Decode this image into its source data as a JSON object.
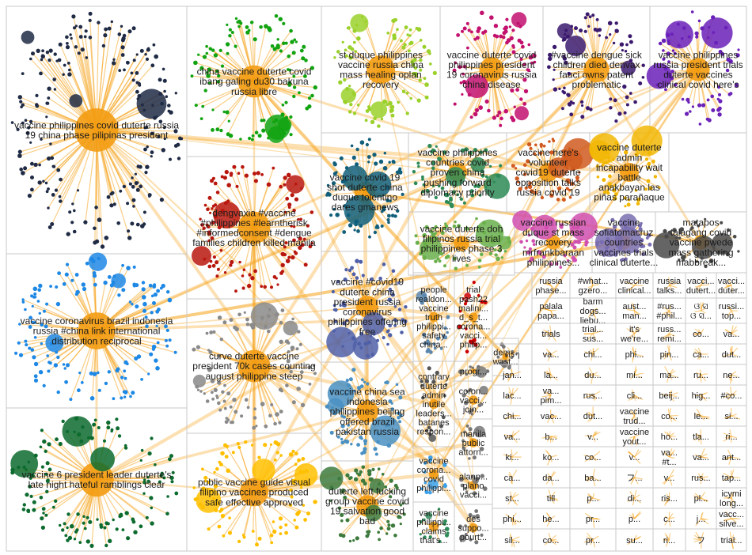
{
  "colors": {
    "edge": "#f5a623",
    "hub": "#f39c12",
    "cell_border": "#c8c8c8",
    "label": "#1a1a1a"
  },
  "groups": [
    {
      "id": "g1",
      "lines": [
        "vaccine philippines covid duterte russia",
        "19 china phase pilipinas president"
      ],
      "color": "#1f2a44",
      "nodes": 220
    },
    {
      "id": "g2",
      "lines": [
        "china vaccine duterte covid",
        "ibang galing du30 bakuna",
        "russia libre"
      ],
      "color": "#11a311",
      "nodes": 110
    },
    {
      "id": "g3",
      "lines": [
        "st duque philippines",
        "vaccine russia china",
        "mass healing oplan",
        "recovery"
      ],
      "color": "#9ad12b",
      "nodes": 90
    },
    {
      "id": "g4",
      "lines": [
        "vaccine duterte covid",
        "philippines president",
        "19 coronavirus russia",
        "china disease"
      ],
      "color": "#c2116e",
      "nodes": 80
    },
    {
      "id": "g5",
      "lines": [
        "#vaccine dengue sick",
        "children died denvax",
        "fauci owns patent",
        "problematic"
      ],
      "color": "#3b1a6e",
      "nodes": 75
    },
    {
      "id": "g6",
      "lines": [
        "vaccine philippines",
        "russia president trials",
        "duterte vaccines",
        "clinical covid here's"
      ],
      "color": "#6a21b8",
      "nodes": 70
    },
    {
      "id": "g7",
      "lines": [
        "dengvaxia #vaccine",
        "#philippines #learntherisk",
        "#informedconsent #dengue",
        "families children killed manila"
      ],
      "color": "#b8170f",
      "nodes": 110
    },
    {
      "id": "g8",
      "lines": [
        "vaccine covid 19",
        "shot duterte china",
        "duque tolentino",
        "dares gmanews"
      ],
      "color": "#115f7a",
      "nodes": 70
    },
    {
      "id": "g9",
      "lines": [
        "vaccine philippines",
        "countries covid",
        "proven china",
        "pushing forward",
        "diplomacy priority"
      ],
      "color": "#2e8b57",
      "nodes": 60
    },
    {
      "id": "g10",
      "lines": [
        "vaccine here's",
        "volunteer",
        "covid19 duterte",
        "opposition talks",
        "russia covid 19"
      ],
      "color": "#d05a1f",
      "nodes": 50
    },
    {
      "id": "g11",
      "lines": [
        "vaccine duterte",
        "admin",
        "incapability wait",
        "battle",
        "anakbayan las",
        "piñas parañaque"
      ],
      "color": "#f2b705",
      "nodes": 45
    },
    {
      "id": "g12",
      "lines": [
        "vaccine coronavirus brazil indonesia",
        "russia #china link international",
        "distribution reciprocal"
      ],
      "color": "#1e88e5",
      "nodes": 150
    },
    {
      "id": "g13",
      "lines": [
        "curve duterte vaccine",
        "president 70k cases counting",
        "august philippine steep"
      ],
      "color": "#8a8a8a",
      "nodes": 100
    },
    {
      "id": "g14",
      "lines": [
        "vaccine #covid19",
        "duterte china",
        "president russia",
        "coronavirus",
        "philippines offering",
        "free"
      ],
      "color": "#5060a8",
      "nodes": 60
    },
    {
      "id": "g15",
      "lines": [
        "vaccine duterte doh",
        "filipinos russia trial",
        "philippines phase 3",
        "lives"
      ],
      "color": "#6ab04c",
      "nodes": 60
    },
    {
      "id": "g16",
      "lines": [
        "vaccine russian",
        "duque st mass",
        "recovery",
        "mrfrankbaraan",
        "philippines..."
      ],
      "color": "#d04fb0",
      "nodes": 45
    },
    {
      "id": "g17",
      "lines": [
        "vaccine",
        "sofiatomacruz",
        "countries",
        "vaccines trials",
        "clinical duterte..."
      ],
      "color": "#7a6fb0",
      "nodes": 35
    },
    {
      "id": "g18",
      "lines": [
        "matapos",
        "talagang covid",
        "vaccine pwede",
        "mass gathering",
        "mabbreak..."
      ],
      "color": "#4a4a4a",
      "nodes": 30
    },
    {
      "id": "g19",
      "lines": [
        "vaccine 6 president leader duterte's",
        "late night hateful ramblings clear"
      ],
      "color": "#0d6b2f",
      "nodes": 130
    },
    {
      "id": "g20",
      "lines": [
        "public vaccine guide visual",
        "filipino vaccines produced",
        "safe effective approved"
      ],
      "color": "#ffbf00",
      "nodes": 90
    },
    {
      "id": "g21",
      "lines": [
        "vaccine china sea",
        "indonesia",
        "philippines beijing",
        "offered brazil",
        "pakistan russia"
      ],
      "color": "#4a90c2",
      "nodes": 60
    },
    {
      "id": "g22",
      "lines": [
        "duterte left fucking",
        "group vaccine covid",
        "19 salvation good",
        "bad"
      ],
      "color": "#3d7a3d",
      "nodes": 60
    },
    {
      "id": "g23",
      "lines": [
        "people",
        "realdon...",
        "vaccine",
        "truth",
        "philippi...",
        "safety",
        "china..."
      ],
      "color": "#5c88b0",
      "nodes": 20
    },
    {
      "id": "g24",
      "lines": [
        "trial",
        "pash22",
        "malini...",
        "d_s_t...",
        "corona...",
        "vacci...",
        "philip..."
      ],
      "color": "#c00",
      "nodes": 15
    },
    {
      "id": "g25",
      "lines": [
        "contrary",
        "duterte",
        "admin",
        "inutile",
        "leaders...",
        "batanes",
        "respon..."
      ],
      "color": "#555",
      "nodes": 15
    },
    {
      "id": "g26",
      "lines": [
        "dem...",
        "wast..."
      ],
      "color": "#777",
      "nodes": 10
    },
    {
      "id": "g27",
      "lines": [
        "progr..."
      ],
      "color": "#777",
      "nodes": 8
    },
    {
      "id": "g28",
      "lines": [
        "coron...",
        "vacci...",
        "join..."
      ],
      "color": "#777",
      "nodes": 10
    },
    {
      "id": "g29",
      "lines": [
        "manila",
        "public",
        "attorn..."
      ],
      "color": "#777",
      "nodes": 10
    },
    {
      "id": "g30",
      "lines": [
        "vaccine",
        "corona...",
        "covid",
        "philippi..."
      ],
      "color": "#3aa0e8",
      "nodes": 12
    },
    {
      "id": "g31",
      "lines": [
        "alanp...",
        "plano",
        "vacci..."
      ],
      "color": "#777",
      "nodes": 10
    },
    {
      "id": "g32",
      "lines": [
        "vaccine",
        "philippi...",
        "claims",
        "that's..."
      ],
      "color": "#2e8b57",
      "nodes": 12
    },
    {
      "id": "g33",
      "lines": [
        "des",
        "suppo...",
        "pourt..."
      ],
      "color": "#777",
      "nodes": 10
    }
  ],
  "small_cells": [
    [
      "russia",
      "phase..."
    ],
    [
      "#what...",
      "gzero..."
    ],
    [
      "vaccine",
      "clinical..."
    ],
    [
      "russia",
      "talks..."
    ],
    [
      "vacci...",
      "dutert..."
    ],
    [
      "vacci...",
      "duter..."
    ],
    [
      "palala",
      "papa..."
    ],
    [
      "barm",
      "dogs...",
      "liebu..."
    ],
    [
      "aust...",
      "man..."
    ],
    [
      "#rus...",
      "#phil..."
    ],
    [
      "ଓ ସ",
      "ଓ ସ..."
    ],
    [
      "russi...",
      "top..."
    ],
    [
      "trials"
    ],
    [
      "trial...",
      "sus..."
    ],
    [
      "it's",
      "we're..."
    ],
    [
      "russ...",
      "remi..."
    ],
    [
      "co..."
    ],
    [
      "va..."
    ],
    [
      "ดรๆ"
    ],
    [
      "va..."
    ],
    [
      "chi..."
    ],
    [
      "phi..."
    ],
    [
      "pin..."
    ],
    [
      "ca..."
    ],
    [
      "dut..."
    ],
    [
      "jan..."
    ],
    [
      "la..."
    ],
    [
      "du..."
    ],
    [
      "mi..."
    ],
    [
      "ma..."
    ],
    [
      "ru..."
    ],
    [
      "ne..."
    ],
    [
      "lac..."
    ],
    [
      "va...",
      "pim..."
    ],
    [
      "rus..."
    ],
    [
      "cli..."
    ],
    [
      "beij..."
    ],
    [
      "hig..."
    ],
    [
      "#co..."
    ],
    [
      "chi..."
    ],
    [
      "vac..."
    ],
    [
      "dut..."
    ],
    [
      "vaccine",
      "trud..."
    ],
    [
      "co..."
    ],
    [
      "le..."
    ],
    [
      "si..."
    ],
    [
      "va..."
    ],
    [
      "b..."
    ],
    [
      "v..."
    ],
    [
      "vaccine",
      "yout..."
    ],
    [
      "ho..."
    ],
    [
      "tla..."
    ],
    [
      "ri..."
    ],
    [
      "ki..."
    ],
    [
      "ko..."
    ],
    [
      "co..."
    ],
    [
      "v..."
    ],
    [
      "va...",
      "#t..."
    ],
    [
      "va..."
    ],
    [
      "ant..."
    ],
    [
      "ca..."
    ],
    [
      "da..."
    ],
    [
      "ba..."
    ],
    [
      "フ..."
    ],
    [
      "v..."
    ],
    [
      "rus..."
    ],
    [
      "tap..."
    ],
    [
      "st..."
    ],
    [
      "till"
    ],
    [
      "p..."
    ],
    [
      "di..."
    ],
    [
      "ris..."
    ],
    [
      "pl..."
    ],
    [
      "icymi",
      "long..."
    ],
    [
      "phi..."
    ],
    [
      "he..."
    ],
    [
      "pr..."
    ],
    [
      "p..."
    ],
    [
      "c..."
    ],
    [
      "j..."
    ],
    [
      "vacc...",
      "silve..."
    ],
    [
      "sil..."
    ],
    [
      "co..."
    ],
    [
      "pr..."
    ],
    [
      "su..."
    ],
    [
      "ri..."
    ],
    [
      "フ"
    ],
    [
      "trial..."
    ],
    [
      "tria..."
    ],
    [
      "reu..."
    ],
    [
      "in..."
    ],
    [
      "..."
    ],
    [
      "liv..."
    ],
    [
      "b..."
    ],
    [
      "st..."
    ],
    [
      "up..."
    ],
    [
      "dute...",
      "russi..."
    ],
    [
      "co..."
    ],
    [
      "imi..."
    ],
    [
      "chi..."
    ],
    [
      "#..."
    ],
    [
      "ru..."
    ],
    [
      "v..."
    ],
    [
      "b..."
    ],
    [
      "dut..."
    ]
  ]
}
